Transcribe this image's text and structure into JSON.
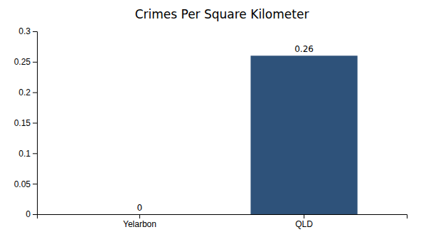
{
  "chart_data": {
    "type": "bar",
    "title": "Crimes Per Square Kilometer",
    "categories": [
      "Yelarbon",
      "QLD"
    ],
    "values": [
      0,
      0.26
    ],
    "colors": [
      "#3a5f8a",
      "#2e527a"
    ],
    "ylim": [
      0,
      0.3
    ],
    "yticks": [
      0,
      0.05,
      0.1,
      0.15,
      0.2,
      0.25,
      0.3
    ],
    "grid": false,
    "data_labels": true
  }
}
